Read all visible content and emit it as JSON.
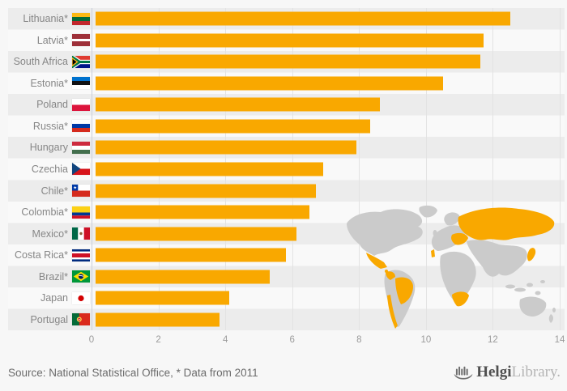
{
  "chart_data": {
    "type": "bar",
    "orientation": "horizontal",
    "title": "",
    "xlabel": "",
    "ylabel": "",
    "xlim": [
      0,
      14
    ],
    "xticks": [
      0,
      2,
      4,
      6,
      8,
      10,
      12,
      14
    ],
    "grid": true,
    "legend": false,
    "categories": [
      "Lithuania*",
      "Latvia*",
      "South Africa",
      "Estonia*",
      "Poland",
      "Russia*",
      "Hungary",
      "Czechia",
      "Chile*",
      "Colombia*",
      "Mexico*",
      "Costa Rica*",
      "Brazil*",
      "Japan",
      "Portugal"
    ],
    "values": [
      12.4,
      11.6,
      11.5,
      10.4,
      8.5,
      8.2,
      7.8,
      6.8,
      6.6,
      6.4,
      6.0,
      5.7,
      5.2,
      4.0,
      3.7
    ],
    "flags": [
      "lithuania",
      "latvia",
      "south-africa",
      "estonia",
      "poland",
      "russia",
      "hungary",
      "czechia",
      "chile",
      "colombia",
      "mexico",
      "costa-rica",
      "brazil",
      "japan",
      "portugal"
    ],
    "map_highlighted_countries": [
      "Russia",
      "Baltics-Poland-Hungary",
      "Portugal",
      "Mexico",
      "Costa Rica",
      "Colombia",
      "Brazil",
      "Chile",
      "South Africa",
      "Japan"
    ]
  },
  "footer": {
    "source_text": "Source: National Statistical Office, * Data from 2011",
    "logo": {
      "primary": "Helgi",
      "secondary": "Library",
      "suffix": "."
    }
  },
  "colors": {
    "bar": "#F9A800",
    "row_stripe": "#ECECEC",
    "background": "#F7F7F7",
    "gridline": "#E3E3E3",
    "zero_line": "#C9CFDA",
    "map_land": "#CBCBCB",
    "map_highlight": "#F9A800"
  }
}
